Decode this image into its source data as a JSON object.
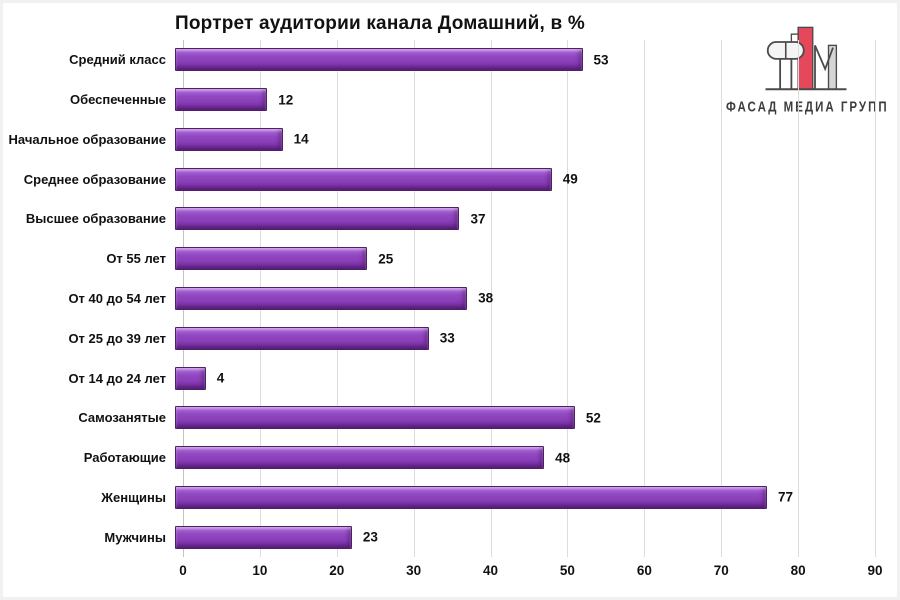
{
  "header": {
    "title": "Портрет аудитории канала Домашний, в %"
  },
  "logo": {
    "text": "ФАСАД МЕДИА ГРУПП",
    "icon": "fasad-media-group-logo",
    "red": "#e5475b",
    "gray": "#d5d5d5",
    "outline": "#4a4a4a"
  },
  "colors": {
    "bar_fill": "#8e43bd",
    "bar_highlight": "#b97fe2",
    "bar_shadow": "#6a2a92",
    "bar_border": "#4e2167",
    "gridline": "#dddddd",
    "axis_line": "#c3c3c3",
    "text": "#111111",
    "background": "#ffffff"
  },
  "chart_data": {
    "type": "bar",
    "orientation": "horizontal",
    "title": "Портрет аудитории канала Домашний, в %",
    "categories": [
      "Средний класс",
      "Обеспеченные",
      "Начальное образование",
      "Среднее образование",
      "Высшее образование",
      "От 55 лет",
      "От 40 до 54 лет",
      "От 25 до 39 лет",
      "От 14 до 24 лет",
      "Самозанятые",
      "Работающие",
      "Женщины",
      "Мужчины"
    ],
    "values": [
      53,
      12,
      14,
      49,
      37,
      25,
      38,
      33,
      4,
      52,
      48,
      77,
      23
    ],
    "xlabel": "",
    "ylabel": "",
    "xlim": [
      0,
      90
    ],
    "xticks": [
      0,
      10,
      20,
      30,
      40,
      50,
      60,
      70,
      80,
      90
    ],
    "grid": true,
    "value_labels": true,
    "legend": "none"
  }
}
